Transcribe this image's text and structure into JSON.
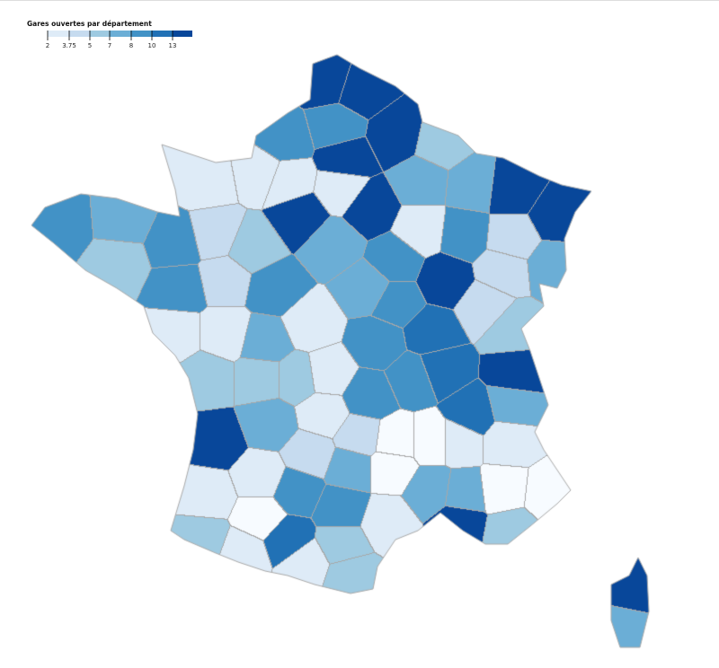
{
  "legend": {
    "title": "Gares ouvertes par département",
    "ticks": [
      "2",
      "3.75",
      "5",
      "7",
      "8",
      "10",
      "13"
    ],
    "colors": [
      "#deebf7",
      "#c6dbef",
      "#9ecae1",
      "#6baed6",
      "#4292c6",
      "#2171b5",
      "#08479a"
    ]
  },
  "map": {
    "palette": [
      "#f7fbff",
      "#deebf7",
      "#c6dbef",
      "#9ecae1",
      "#6baed6",
      "#4292c6",
      "#2171b5",
      "#08479a"
    ],
    "border_color": "#a8a8a8"
  }
}
